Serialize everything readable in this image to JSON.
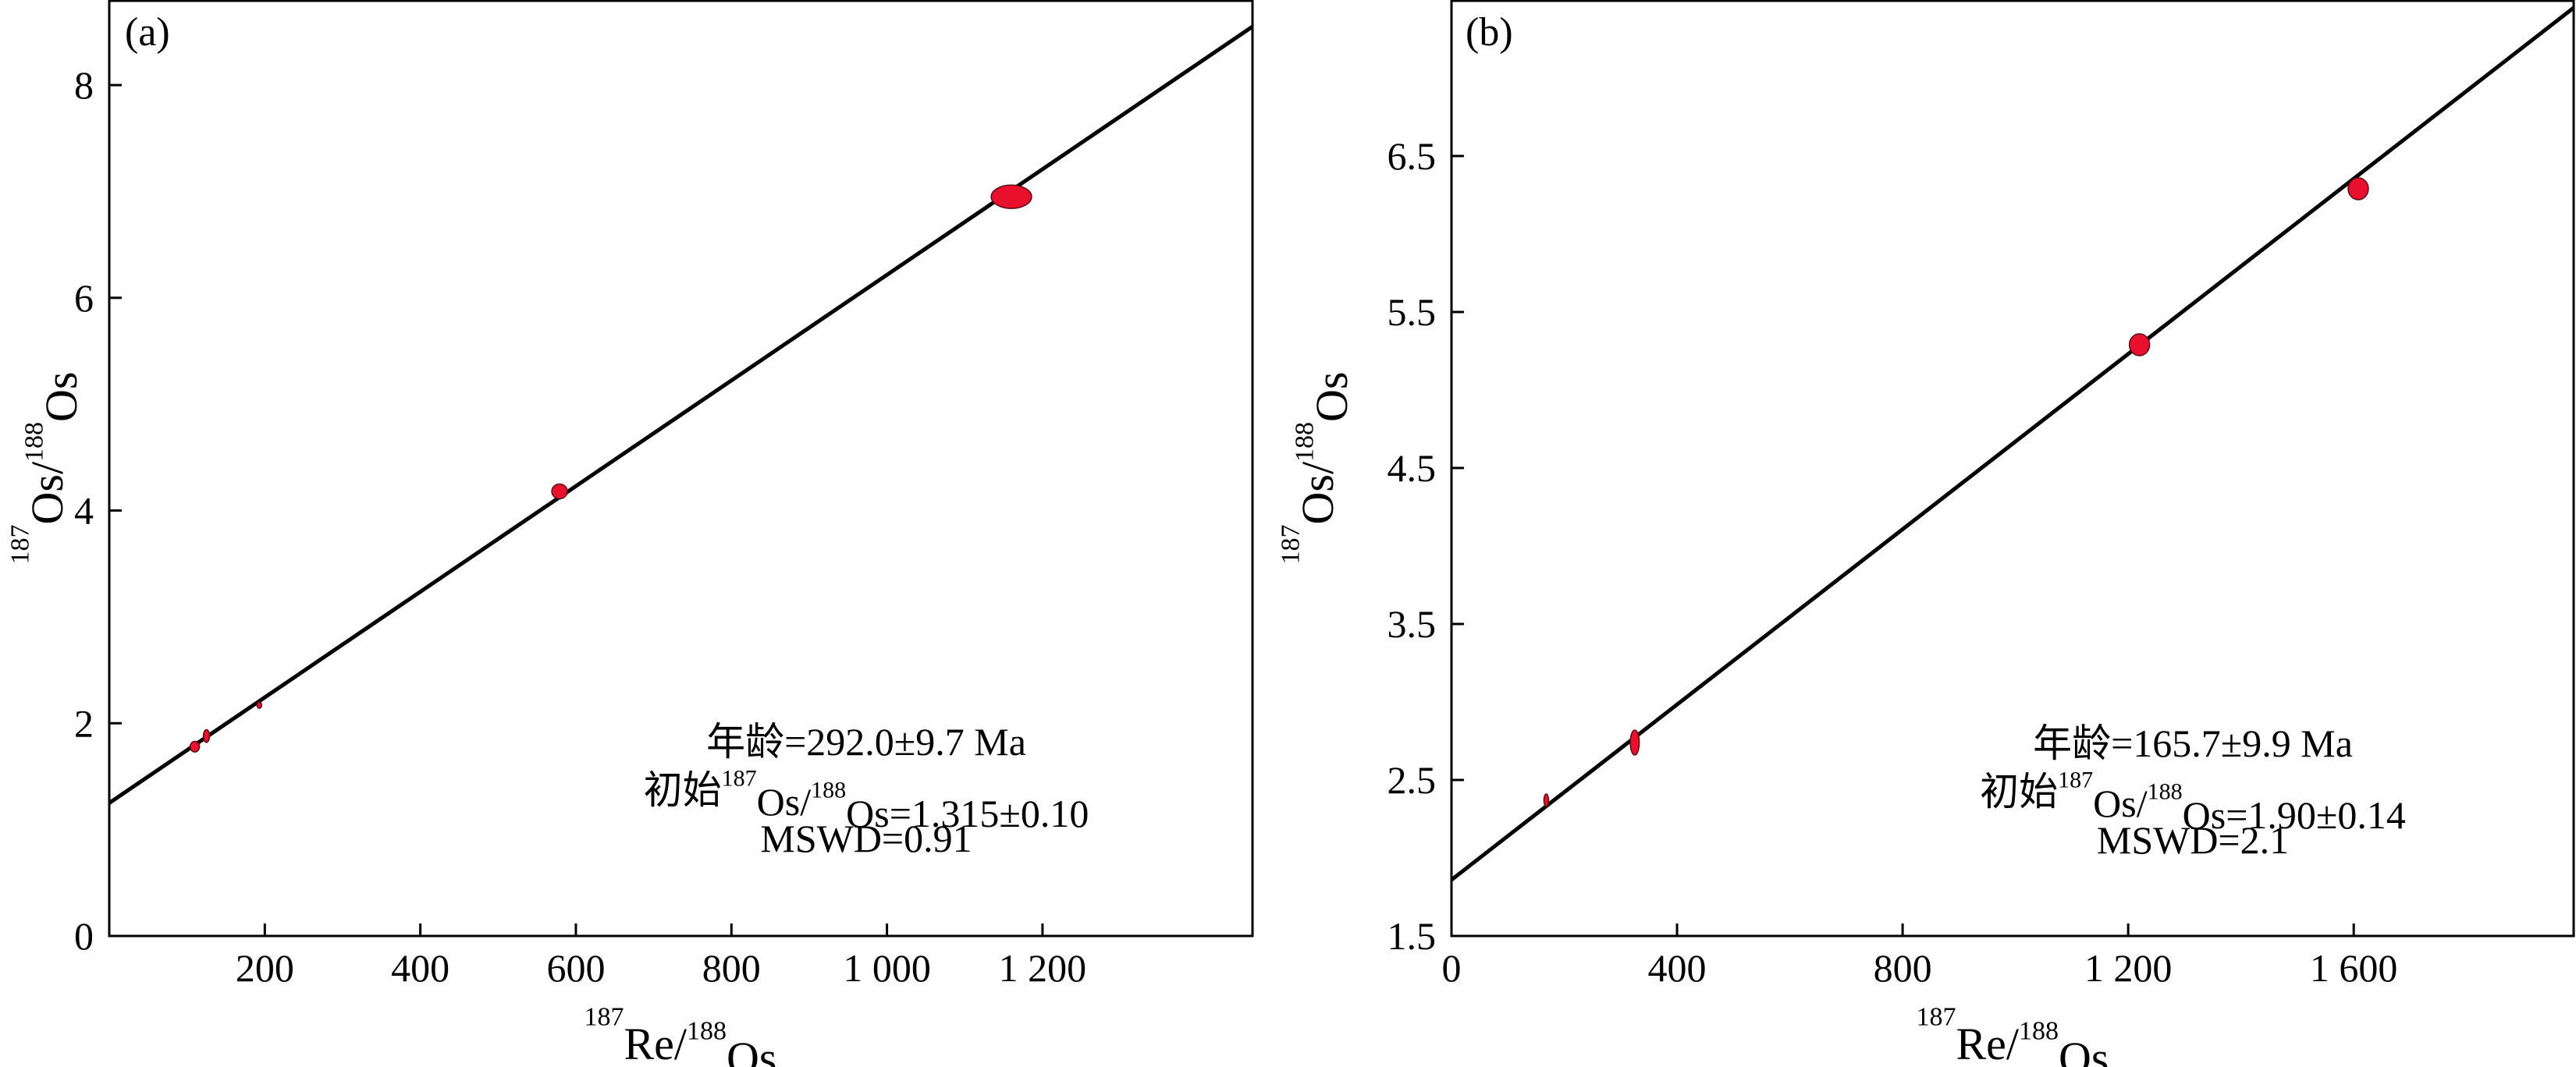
{
  "chart_data": [
    {
      "type": "scatter",
      "panel_label": "(a)",
      "xlabel": {
        "sup1": "187",
        "base1": "Re/",
        "sup2": "188",
        "base2": "Os"
      },
      "ylabel": {
        "sup1": "187",
        "base1": "Os/",
        "sup2": "188",
        "base2": "Os"
      },
      "xlim": [
        0,
        1470
      ],
      "ylim": [
        0,
        8.8
      ],
      "x_ticks": [
        200,
        400,
        600,
        800,
        1000,
        1200
      ],
      "x_tick_labels": [
        "200",
        "400",
        "600",
        "800",
        "1 000",
        "1 200"
      ],
      "y_ticks": [
        0,
        2,
        4,
        6,
        8
      ],
      "y_tick_labels": [
        "0",
        "2",
        "4",
        "6",
        "8"
      ],
      "points": [
        {
          "x": 110,
          "y": 1.78,
          "ex": 6,
          "ey": 0.05
        },
        {
          "x": 125,
          "y": 1.88,
          "ex": 4,
          "ey": 0.06
        },
        {
          "x": 193,
          "y": 2.17,
          "ex": 3,
          "ey": 0.03
        },
        {
          "x": 579,
          "y": 4.18,
          "ex": 10,
          "ey": 0.07
        },
        {
          "x": 1160,
          "y": 6.95,
          "ex": 26,
          "ey": 0.11
        }
      ],
      "isochron": {
        "x": [
          0,
          1470
        ],
        "y": [
          1.25,
          8.55
        ]
      },
      "annotation": {
        "line1": "年龄=292.0±9.7 Ma",
        "line2": {
          "prefix": "初始",
          "sup1": "187",
          "mid": "Os/",
          "sup2": "188",
          "suffix": "Os=1.315±0.10"
        },
        "line3": "MSWD=0.91"
      },
      "grid": false,
      "point_color": "#e8102d"
    },
    {
      "type": "scatter",
      "panel_label": "(b)",
      "xlabel": {
        "sup1": "187",
        "base1": "Re/",
        "sup2": "188",
        "base2": "Os"
      },
      "ylabel": {
        "sup1": "187",
        "base1": "Os/",
        "sup2": "188",
        "base2": "Os"
      },
      "xlim": [
        0,
        1990
      ],
      "ylim": [
        1.5,
        7.5
      ],
      "x_ticks": [
        0,
        400,
        800,
        1200,
        1600
      ],
      "x_tick_labels": [
        "0",
        "400",
        "800",
        "1 200",
        "1 600"
      ],
      "y_ticks": [
        1.5,
        2.5,
        3.5,
        4.5,
        5.5,
        6.5
      ],
      "y_tick_labels": [
        "1.5",
        "2.5",
        "3.5",
        "4.5",
        "5.5",
        "6.5"
      ],
      "points": [
        {
          "x": 168,
          "y": 2.37,
          "ex": 4,
          "ey": 0.04
        },
        {
          "x": 325,
          "y": 2.74,
          "ex": 8,
          "ey": 0.08
        },
        {
          "x": 1220,
          "y": 5.29,
          "ex": 18,
          "ey": 0.07
        },
        {
          "x": 1608,
          "y": 6.29,
          "ex": 18,
          "ey": 0.07
        }
      ],
      "isochron": {
        "x": [
          0,
          1990
        ],
        "y": [
          1.86,
          7.45
        ]
      },
      "annotation": {
        "line1": "年龄=165.7±9.9 Ma",
        "line2": {
          "prefix": "初始",
          "sup1": "187",
          "mid": "Os/",
          "sup2": "188",
          "suffix": "Os=1.90±0.14"
        },
        "line3": "MSWD=2.1"
      },
      "grid": false,
      "point_color": "#e8102d"
    }
  ]
}
